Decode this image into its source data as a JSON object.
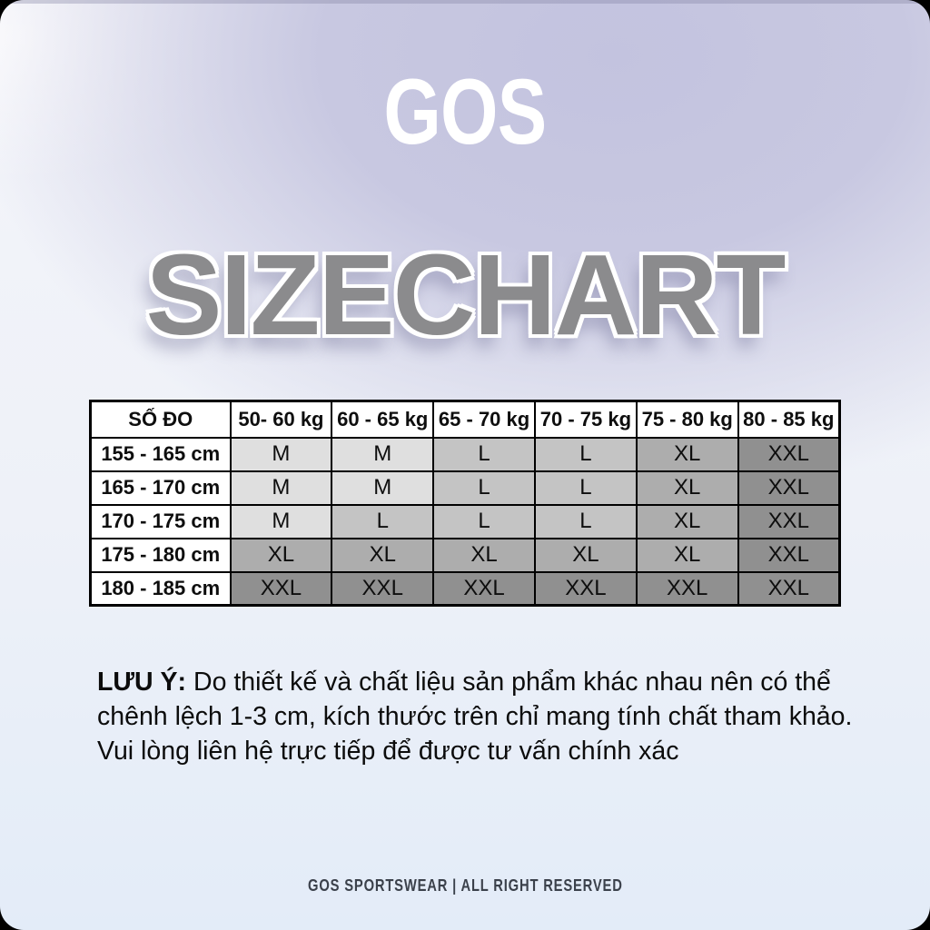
{
  "brand": {
    "logo_text": "GOS"
  },
  "title": {
    "text": "SIZECHART",
    "color": "#8b8b8d"
  },
  "size_table": {
    "columns": [
      "SỐ ĐO",
      "50- 60 kg",
      "60 - 65 kg",
      "65 - 70 kg",
      "70 - 75 kg",
      "75 - 80 kg",
      "80 - 85 kg"
    ],
    "rows": [
      {
        "label": "155 - 165 cm",
        "sizes": [
          "M",
          "M",
          "L",
          "L",
          "XL",
          "XXL"
        ]
      },
      {
        "label": "165 - 170 cm",
        "sizes": [
          "M",
          "M",
          "L",
          "L",
          "XL",
          "XXL"
        ]
      },
      {
        "label": "170 - 175 cm",
        "sizes": [
          "M",
          "L",
          "L",
          "L",
          "XL",
          "XXL"
        ]
      },
      {
        "label": "175 - 180 cm",
        "sizes": [
          "XL",
          "XL",
          "XL",
          "XL",
          "XL",
          "XXL"
        ]
      },
      {
        "label": "180 - 185 cm",
        "sizes": [
          "XXL",
          "XXL",
          "XXL",
          "XXL",
          "XXL",
          "XXL"
        ]
      }
    ],
    "size_cell_colors": {
      "M": "#dfdfdf",
      "L": "#c4c4c4",
      "XL": "#adadad",
      "XXL": "#909090"
    }
  },
  "note": {
    "label": "LƯU Ý:",
    "body": "Do thiết kế và chất liệu sản phẩm khác nhau nên có thể chênh lệch 1-3 cm, kích thước trên chỉ mang tính chất tham khảo. Vui lòng liên hệ trực tiếp để được tư vấn chính xác"
  },
  "footer": {
    "text": "GOS SPORTSWEAR | ALL RIGHT RESERVED"
  }
}
